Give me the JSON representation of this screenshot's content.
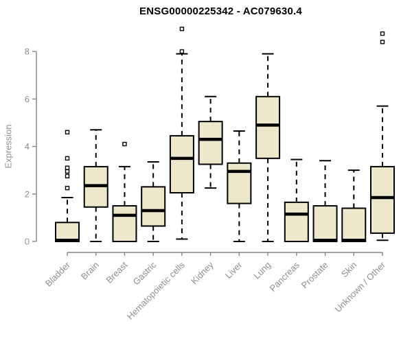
{
  "page": {
    "title": "ENSG00000225342 - AC079630.4"
  },
  "chart_data": {
    "type": "boxplot",
    "title": "ENSG00000225342 - AC079630.4",
    "xlabel": "",
    "ylabel": "Expression",
    "ylim": [
      0,
      9.2
    ],
    "yticks": [
      0,
      2,
      4,
      6,
      8
    ],
    "grid": false,
    "legend": "none",
    "categories": [
      "Bladder",
      "Brain",
      "Breast",
      "Gastric",
      "Hematopoietic cells",
      "Kidney",
      "Liver",
      "Lung",
      "Pancreas",
      "Prostate",
      "Skin",
      "Unknown / Other"
    ],
    "series": [
      {
        "category": "Bladder",
        "whisker_low": 0,
        "q1": 0,
        "median": 0.05,
        "q3": 0.8,
        "whisker_high": 1.85,
        "outliers": [
          2.25,
          2.75,
          2.95,
          3.1,
          3.5,
          4.6
        ]
      },
      {
        "category": "Brain",
        "whisker_low": 0,
        "q1": 1.45,
        "median": 2.35,
        "q3": 3.15,
        "whisker_high": 4.7,
        "outliers": []
      },
      {
        "category": "Breast",
        "whisker_low": 0,
        "q1": 0,
        "median": 1.1,
        "q3": 1.5,
        "whisker_high": 3.15,
        "outliers": [
          4.1
        ]
      },
      {
        "category": "Gastric",
        "whisker_low": 0,
        "q1": 0.65,
        "median": 1.3,
        "q3": 2.3,
        "whisker_high": 3.35,
        "outliers": []
      },
      {
        "category": "Hematopoietic cells",
        "whisker_low": 0.1,
        "q1": 2.05,
        "median": 3.5,
        "q3": 4.45,
        "whisker_high": 7.9,
        "outliers": [
          8.0,
          8.95
        ]
      },
      {
        "category": "Kidney",
        "whisker_low": 2.25,
        "q1": 3.25,
        "median": 4.3,
        "q3": 5.05,
        "whisker_high": 6.1,
        "outliers": []
      },
      {
        "category": "Liver",
        "whisker_low": 0,
        "q1": 1.6,
        "median": 2.95,
        "q3": 3.3,
        "whisker_high": 4.65,
        "outliers": []
      },
      {
        "category": "Lung",
        "whisker_low": 0,
        "q1": 3.5,
        "median": 4.9,
        "q3": 6.1,
        "whisker_high": 7.9,
        "outliers": []
      },
      {
        "category": "Pancreas",
        "whisker_low": 0,
        "q1": 0,
        "median": 1.15,
        "q3": 1.65,
        "whisker_high": 3.45,
        "outliers": []
      },
      {
        "category": "Prostate",
        "whisker_low": 0,
        "q1": 0,
        "median": 0.05,
        "q3": 1.5,
        "whisker_high": 3.4,
        "outliers": []
      },
      {
        "category": "Skin",
        "whisker_low": 0,
        "q1": 0,
        "median": 0.05,
        "q3": 1.4,
        "whisker_high": 3.0,
        "outliers": []
      },
      {
        "category": "Unknown / Other",
        "whisker_low": 0.05,
        "q1": 0.35,
        "median": 1.85,
        "q3": 3.15,
        "whisker_high": 5.7,
        "outliers": [
          8.4,
          8.75
        ]
      }
    ],
    "colors": {
      "box_fill": "#EDE7CC",
      "box_stroke": "#000000",
      "median": "#000000",
      "whisker": "#000000",
      "outlier_stroke": "#000000",
      "axis": "#848484",
      "tick_text": "#8E8E8E",
      "title_text": "#000000",
      "background": "#FFFFFF"
    }
  }
}
